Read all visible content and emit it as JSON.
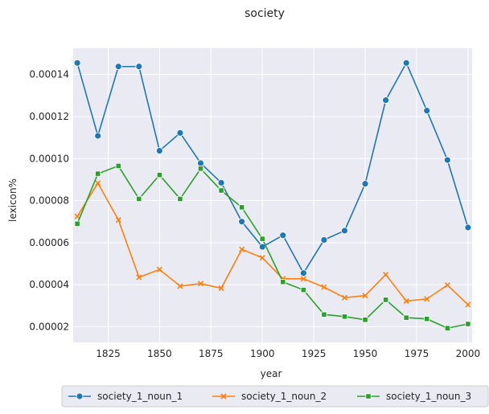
{
  "chart_data": {
    "type": "line",
    "title": "society",
    "xlabel": "year",
    "ylabel": "lexicon%",
    "xlim": [
      1808,
      2002
    ],
    "ylim": [
      1.25e-05,
      0.0001525
    ],
    "x_ticks": [
      1825,
      1850,
      1875,
      1900,
      1925,
      1950,
      1975,
      2000
    ],
    "y_ticks": [
      2e-05,
      4e-05,
      6e-05,
      8e-05,
      0.0001,
      0.00012,
      0.00014
    ],
    "y_tick_labels": [
      "0.00002",
      "0.00004",
      "0.00006",
      "0.00008",
      "0.00010",
      "0.00012",
      "0.00014"
    ],
    "grid": true,
    "legend_position": "bottom-center",
    "x": [
      1810,
      1820,
      1830,
      1840,
      1850,
      1860,
      1870,
      1880,
      1890,
      1900,
      1910,
      1920,
      1930,
      1940,
      1950,
      1960,
      1970,
      1980,
      1990,
      2000
    ],
    "series": [
      {
        "name": "society_1_noun_1",
        "color": "#1f77b4",
        "marker": "circle",
        "values": [
          0.0001455,
          0.0001108,
          0.0001438,
          0.0001438,
          0.0001037,
          0.0001122,
          9.78e-05,
          8.85e-05,
          7e-05,
          5.8e-05,
          6.35e-05,
          4.55e-05,
          6.13e-05,
          6.57e-05,
          8.8e-05,
          0.0001278,
          0.0001455,
          0.0001228,
          9.93e-05,
          6.72e-05
        ]
      },
      {
        "name": "society_1_noun_2",
        "color": "#ff7f0e",
        "marker": "x",
        "values": [
          7.25e-05,
          8.83e-05,
          7.08e-05,
          4.35e-05,
          4.72e-05,
          3.93e-05,
          4.05e-05,
          3.83e-05,
          5.68e-05,
          5.28e-05,
          4.28e-05,
          4.28e-05,
          3.88e-05,
          3.38e-05,
          3.48e-05,
          4.48e-05,
          3.22e-05,
          3.32e-05,
          3.98e-05,
          3.05e-05
        ]
      },
      {
        "name": "society_1_noun_3",
        "color": "#2ca02c",
        "marker": "square",
        "values": [
          6.9e-05,
          9.28e-05,
          9.65e-05,
          8.08e-05,
          9.22e-05,
          8.08e-05,
          9.52e-05,
          8.48e-05,
          7.68e-05,
          6.18e-05,
          4.13e-05,
          3.75e-05,
          2.58e-05,
          2.48e-05,
          2.33e-05,
          3.28e-05,
          2.43e-05,
          2.37e-05,
          1.93e-05,
          2.13e-05
        ]
      }
    ]
  }
}
